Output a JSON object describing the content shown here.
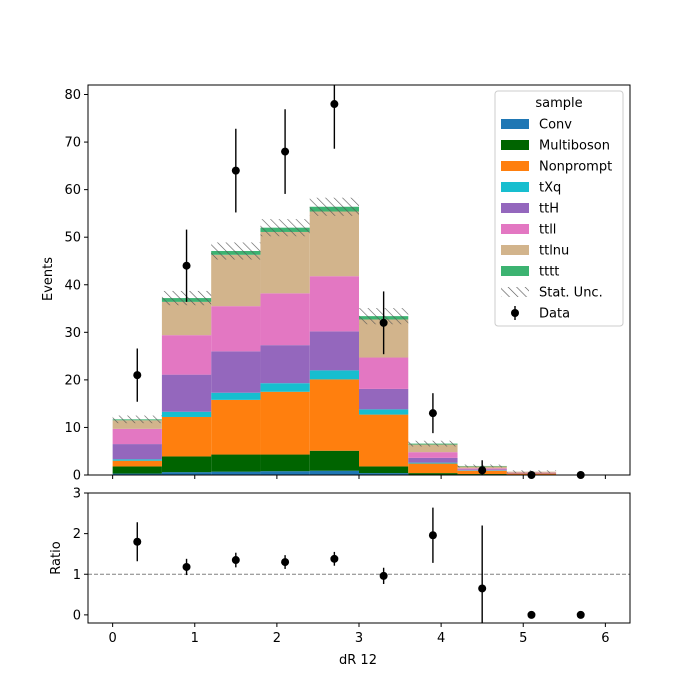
{
  "chart_data": [
    {
      "type": "bar",
      "stacked": true,
      "panel": "main",
      "bin_edges": [
        0,
        0.6,
        1.2,
        1.8,
        2.4,
        3.0,
        3.6,
        4.2,
        4.8,
        5.4,
        6.0
      ],
      "series": [
        {
          "name": "Conv",
          "color": "#1f77b4",
          "values": [
            0.3,
            0.6,
            0.7,
            0.8,
            0.9,
            0.4,
            0.1,
            0.1,
            0.0,
            0.0
          ]
        },
        {
          "name": "Multiboson",
          "color": "#006400",
          "values": [
            1.5,
            3.3,
            3.6,
            3.5,
            4.2,
            1.4,
            0.3,
            0.1,
            0.0,
            0.0
          ]
        },
        {
          "name": "Nonprompt",
          "color": "#ff7f0e",
          "values": [
            1.2,
            8.3,
            11.5,
            13.2,
            15.0,
            10.9,
            2.0,
            0.7,
            0.3,
            0.0
          ]
        },
        {
          "name": "tXq",
          "color": "#17becf",
          "values": [
            0.3,
            1.1,
            1.5,
            1.8,
            1.9,
            1.1,
            0.2,
            0.1,
            0.0,
            0.0
          ]
        },
        {
          "name": "ttH",
          "color": "#9467bd",
          "values": [
            3.2,
            7.8,
            8.7,
            8.0,
            8.2,
            4.3,
            1.0,
            0.2,
            0.1,
            0.0
          ]
        },
        {
          "name": "ttll",
          "color": "#e377c2",
          "values": [
            3.2,
            8.3,
            9.5,
            10.9,
            11.6,
            6.6,
            1.2,
            0.2,
            0.1,
            0.0
          ]
        },
        {
          "name": "ttlnu",
          "color": "#d2b48c",
          "values": [
            1.8,
            7.0,
            10.8,
            12.9,
            13.6,
            8.0,
            1.6,
            0.4,
            0.2,
            0.0
          ]
        },
        {
          "name": "tttt",
          "color": "#3cb371",
          "values": [
            0.2,
            0.8,
            0.8,
            0.9,
            1.0,
            0.7,
            0.2,
            0.1,
            0.0,
            0.0
          ]
        }
      ],
      "stat_unc": [
        0.8,
        1.5,
        1.8,
        1.8,
        1.9,
        1.7,
        0.6,
        0.3,
        0.3,
        0.0
      ],
      "data": {
        "name": "Data",
        "x": [
          0.3,
          0.9,
          1.5,
          2.1,
          2.7,
          3.3,
          3.9,
          4.5,
          5.1,
          5.7
        ],
        "y": [
          21,
          44,
          64,
          68,
          78,
          32,
          13,
          1,
          0,
          0
        ],
        "err": [
          5.6,
          7.6,
          8.8,
          8.9,
          9.4,
          6.6,
          4.2,
          2.1,
          0,
          0
        ]
      },
      "xlim": [
        -0.3,
        6.3
      ],
      "ylim": [
        0,
        82
      ],
      "yticks": [
        0,
        10,
        20,
        30,
        40,
        50,
        60,
        70,
        80
      ],
      "ylabel": "Events",
      "legend": {
        "title": "sample",
        "placement": "top-right",
        "stat_label": "Stat. Unc."
      }
    },
    {
      "type": "scatter",
      "panel": "ratio",
      "x": [
        0.3,
        0.9,
        1.5,
        2.1,
        2.7,
        3.3,
        3.9,
        4.5,
        5.1,
        5.7
      ],
      "y": [
        1.8,
        1.18,
        1.35,
        1.3,
        1.38,
        0.96,
        1.96,
        0.65,
        0.0,
        0.0
      ],
      "err": [
        0.48,
        0.2,
        0.18,
        0.17,
        0.17,
        0.2,
        0.68,
        1.55,
        0,
        0
      ],
      "reference_line": 1,
      "xlim": [
        -0.3,
        6.3
      ],
      "ylim": [
        -0.2,
        3
      ],
      "xticks": [
        0,
        1,
        2,
        3,
        4,
        5,
        6
      ],
      "yticks": [
        0,
        1,
        2,
        3
      ],
      "ylabel": "Ratio",
      "xlabel": "dR 12"
    }
  ]
}
